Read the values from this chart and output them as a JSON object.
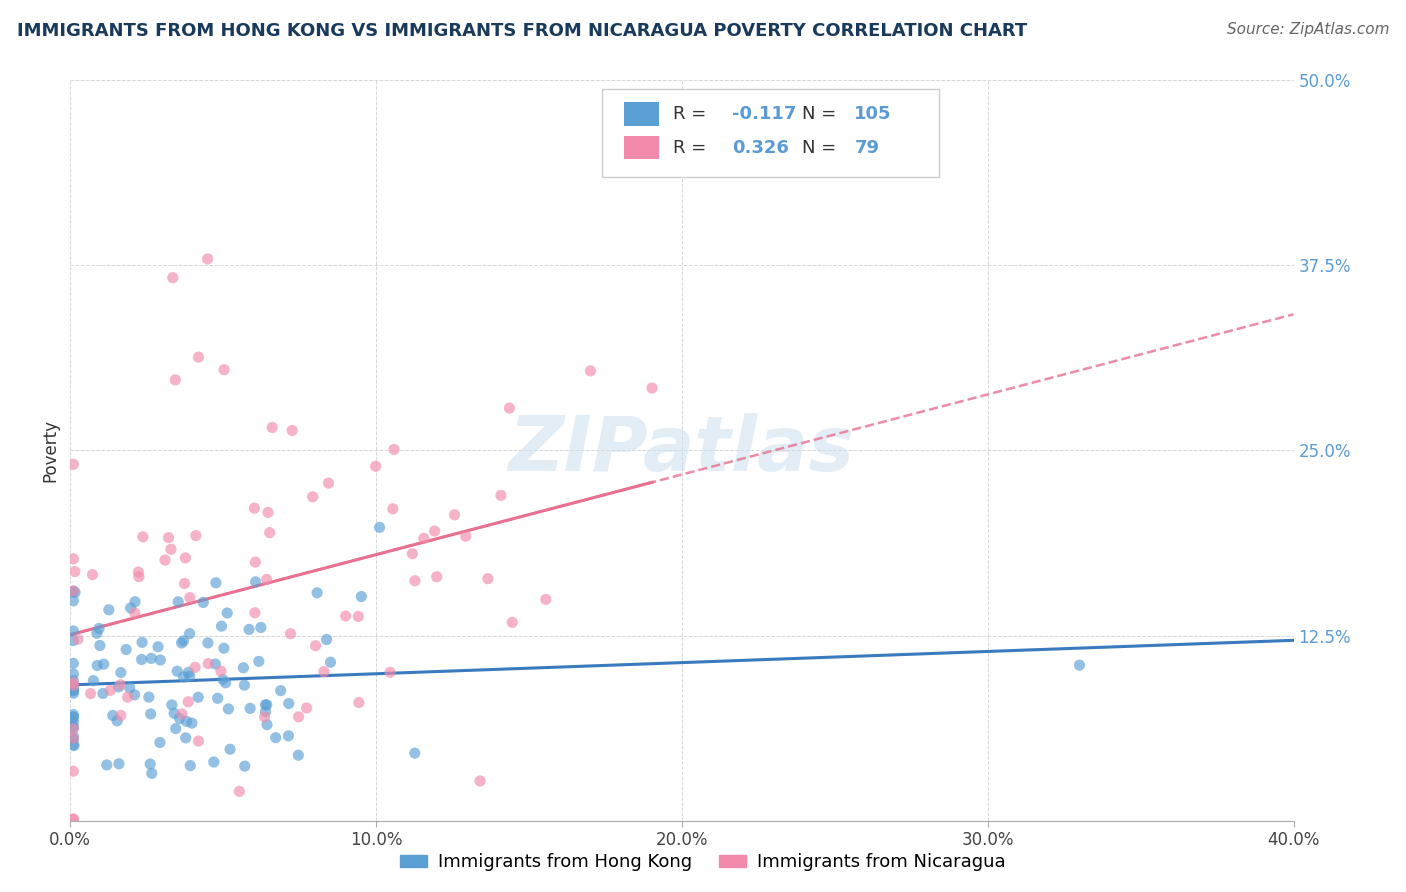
{
  "title": "IMMIGRANTS FROM HONG KONG VS IMMIGRANTS FROM NICARAGUA POVERTY CORRELATION CHART",
  "source": "Source: ZipAtlas.com",
  "ylabel": "Poverty",
  "xlim": [
    0.0,
    0.4
  ],
  "ylim": [
    0.0,
    0.5
  ],
  "xticks": [
    0.0,
    0.1,
    0.2,
    0.3,
    0.4
  ],
  "xtick_labels": [
    "0.0%",
    "10.0%",
    "20.0%",
    "30.0%",
    "40.0%"
  ],
  "yticks": [
    0.0,
    0.125,
    0.25,
    0.375,
    0.5
  ],
  "ytick_labels": [
    "",
    "12.5%",
    "25.0%",
    "37.5%",
    "50.0%"
  ],
  "hk_color": "#5a9fd4",
  "nic_color": "#f28bab",
  "hk_line_color": "#3a7abf",
  "nic_line_color": "#e87090",
  "hk_R": -0.117,
  "hk_N": 105,
  "nic_R": 0.326,
  "nic_N": 79,
  "watermark": "ZIPatlas",
  "background_color": "#ffffff",
  "grid_color": "#bbbbbb",
  "title_color": "#1a3a5c",
  "tick_color": "#5b9bd5",
  "legend_label_hk": "Immigrants from Hong Kong",
  "legend_label_nic": "Immigrants from Nicaragua",
  "seed": 42
}
